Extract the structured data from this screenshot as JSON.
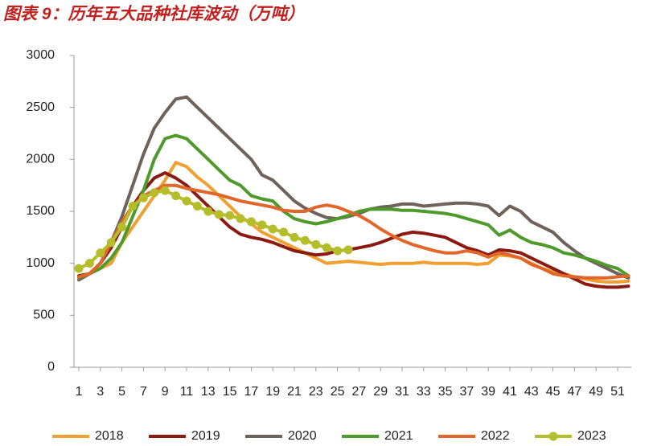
{
  "chart_data": {
    "type": "line",
    "title": "图表 9：历年五大品种社库波动（万吨）",
    "x": [
      1,
      2,
      3,
      4,
      5,
      6,
      7,
      8,
      9,
      10,
      11,
      12,
      13,
      14,
      15,
      16,
      17,
      18,
      19,
      20,
      21,
      22,
      23,
      24,
      25,
      26,
      27,
      28,
      29,
      30,
      31,
      32,
      33,
      34,
      35,
      36,
      37,
      38,
      39,
      40,
      41,
      42,
      43,
      44,
      45,
      46,
      47,
      48,
      49,
      50,
      51,
      52
    ],
    "xlim": [
      0.55,
      52.27
    ],
    "xticks": [
      1,
      3,
      5,
      7,
      9,
      11,
      13,
      15,
      17,
      19,
      21,
      23,
      25,
      27,
      29,
      31,
      33,
      35,
      37,
      39,
      41,
      43,
      45,
      47,
      49,
      51
    ],
    "ylim": [
      0,
      3000
    ],
    "yticks": [
      0,
      500,
      1000,
      1500,
      2000,
      2500,
      3000
    ],
    "grid": false,
    "legend": "bottom",
    "series": [
      {
        "name": "2018",
        "color": "#f0a030",
        "values": [
          880,
          900,
          950,
          1000,
          1200,
          1350,
          1500,
          1650,
          1800,
          1970,
          1930,
          1830,
          1750,
          1650,
          1550,
          1450,
          1380,
          1300,
          1250,
          1200,
          1150,
          1100,
          1050,
          1000,
          1010,
          1020,
          1010,
          1000,
          990,
          1000,
          1000,
          1000,
          1010,
          1000,
          1000,
          1000,
          1000,
          990,
          1000,
          1080,
          1070,
          1050,
          1000,
          950,
          920,
          900,
          870,
          850,
          830,
          820,
          820,
          830
        ]
      },
      {
        "name": "2019",
        "color": "#8b1a10",
        "values": [
          880,
          900,
          1000,
          1150,
          1350,
          1550,
          1700,
          1820,
          1870,
          1820,
          1750,
          1650,
          1550,
          1450,
          1350,
          1280,
          1250,
          1230,
          1200,
          1160,
          1120,
          1100,
          1080,
          1090,
          1120,
          1130,
          1150,
          1170,
          1200,
          1240,
          1280,
          1300,
          1290,
          1270,
          1250,
          1200,
          1150,
          1120,
          1080,
          1130,
          1120,
          1100,
          1050,
          1000,
          950,
          900,
          850,
          800,
          780,
          770,
          770,
          780
        ]
      },
      {
        "name": "2020",
        "color": "#6e625a",
        "values": [
          840,
          900,
          1000,
          1200,
          1450,
          1750,
          2050,
          2300,
          2450,
          2580,
          2600,
          2500,
          2400,
          2300,
          2200,
          2100,
          2000,
          1850,
          1800,
          1700,
          1600,
          1530,
          1480,
          1440,
          1430,
          1450,
          1480,
          1520,
          1540,
          1550,
          1570,
          1570,
          1550,
          1560,
          1570,
          1580,
          1580,
          1570,
          1550,
          1460,
          1550,
          1500,
          1400,
          1350,
          1300,
          1200,
          1120,
          1050,
          1000,
          950,
          900,
          860
        ]
      },
      {
        "name": "2021",
        "color": "#4e9a2a",
        "values": [
          860,
          900,
          950,
          1050,
          1200,
          1450,
          1700,
          2000,
          2200,
          2230,
          2200,
          2100,
          2000,
          1900,
          1800,
          1750,
          1650,
          1620,
          1600,
          1500,
          1430,
          1400,
          1380,
          1400,
          1430,
          1460,
          1500,
          1520,
          1520,
          1520,
          1510,
          1510,
          1500,
          1490,
          1480,
          1460,
          1430,
          1400,
          1370,
          1270,
          1320,
          1250,
          1200,
          1180,
          1150,
          1100,
          1080,
          1050,
          1020,
          980,
          950,
          880
        ]
      },
      {
        "name": "2022",
        "color": "#e0662a",
        "values": [
          870,
          900,
          1000,
          1200,
          1400,
          1550,
          1650,
          1700,
          1750,
          1750,
          1720,
          1700,
          1680,
          1660,
          1630,
          1600,
          1580,
          1560,
          1540,
          1510,
          1500,
          1500,
          1540,
          1560,
          1540,
          1500,
          1460,
          1400,
          1330,
          1270,
          1220,
          1180,
          1150,
          1120,
          1100,
          1100,
          1120,
          1100,
          1060,
          1100,
          1080,
          1050,
          990,
          950,
          900,
          880,
          870,
          860,
          860,
          860,
          870,
          880
        ]
      },
      {
        "name": "2023",
        "color": "#b5be2a",
        "markers": true,
        "values": [
          950,
          1000,
          1100,
          1200,
          1350,
          1550,
          1630,
          1680,
          1700,
          1650,
          1600,
          1550,
          1500,
          1470,
          1460,
          1430,
          1400,
          1370,
          1330,
          1300,
          1250,
          1220,
          1180,
          1150,
          1120,
          1130,
          null,
          null,
          null,
          null,
          null,
          null,
          null,
          null,
          null,
          null,
          null,
          null,
          null,
          null,
          null,
          null,
          null,
          null,
          null,
          null,
          null,
          null,
          null,
          null,
          null,
          null
        ]
      }
    ]
  }
}
